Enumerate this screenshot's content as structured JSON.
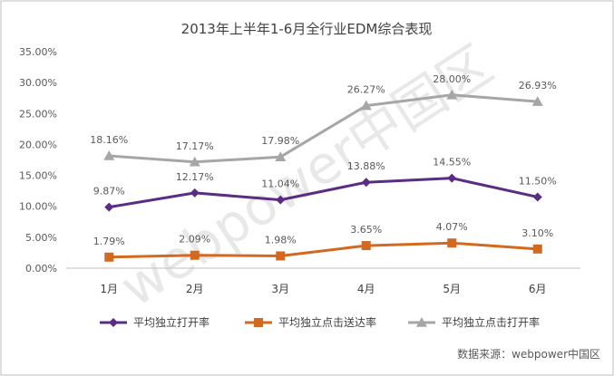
{
  "chart_data": {
    "type": "line",
    "title": "2013年上半年1-6月全行业EDM综合表现",
    "categories": [
      "1月",
      "2月",
      "3月",
      "4月",
      "5月",
      "6月"
    ],
    "ylim": [
      0,
      35
    ],
    "yticks": [
      "0.00%",
      "5.00%",
      "10.00%",
      "15.00%",
      "20.00%",
      "25.00%",
      "30.00%",
      "35.00%"
    ],
    "grid": false,
    "legend_position": "bottom",
    "series": [
      {
        "name": "平均独立打开率",
        "values": [
          9.87,
          12.17,
          11.04,
          13.88,
          14.55,
          11.5
        ],
        "labels": [
          "9.87%",
          "12.17%",
          "11.04%",
          "13.88%",
          "14.55%",
          "11.50%"
        ],
        "color": "#5b2c83",
        "marker": "diamond"
      },
      {
        "name": "平均独立点击送达率",
        "values": [
          1.79,
          2.09,
          1.98,
          3.65,
          4.07,
          3.1
        ],
        "labels": [
          "1.79%",
          "2.09%",
          "1.98%",
          "3.65%",
          "4.07%",
          "3.10%"
        ],
        "color": "#d2691e",
        "marker": "square"
      },
      {
        "name": "平均独立点击打开率",
        "values": [
          18.16,
          17.17,
          17.98,
          26.27,
          28.0,
          26.93
        ],
        "labels": [
          "18.16%",
          "17.17%",
          "17.98%",
          "26.27%",
          "28.00%",
          "26.93%"
        ],
        "color": "#a6a6a6",
        "marker": "triangle"
      }
    ],
    "source": "数据来源：webpower中国区",
    "watermark": "webpower中国区"
  }
}
